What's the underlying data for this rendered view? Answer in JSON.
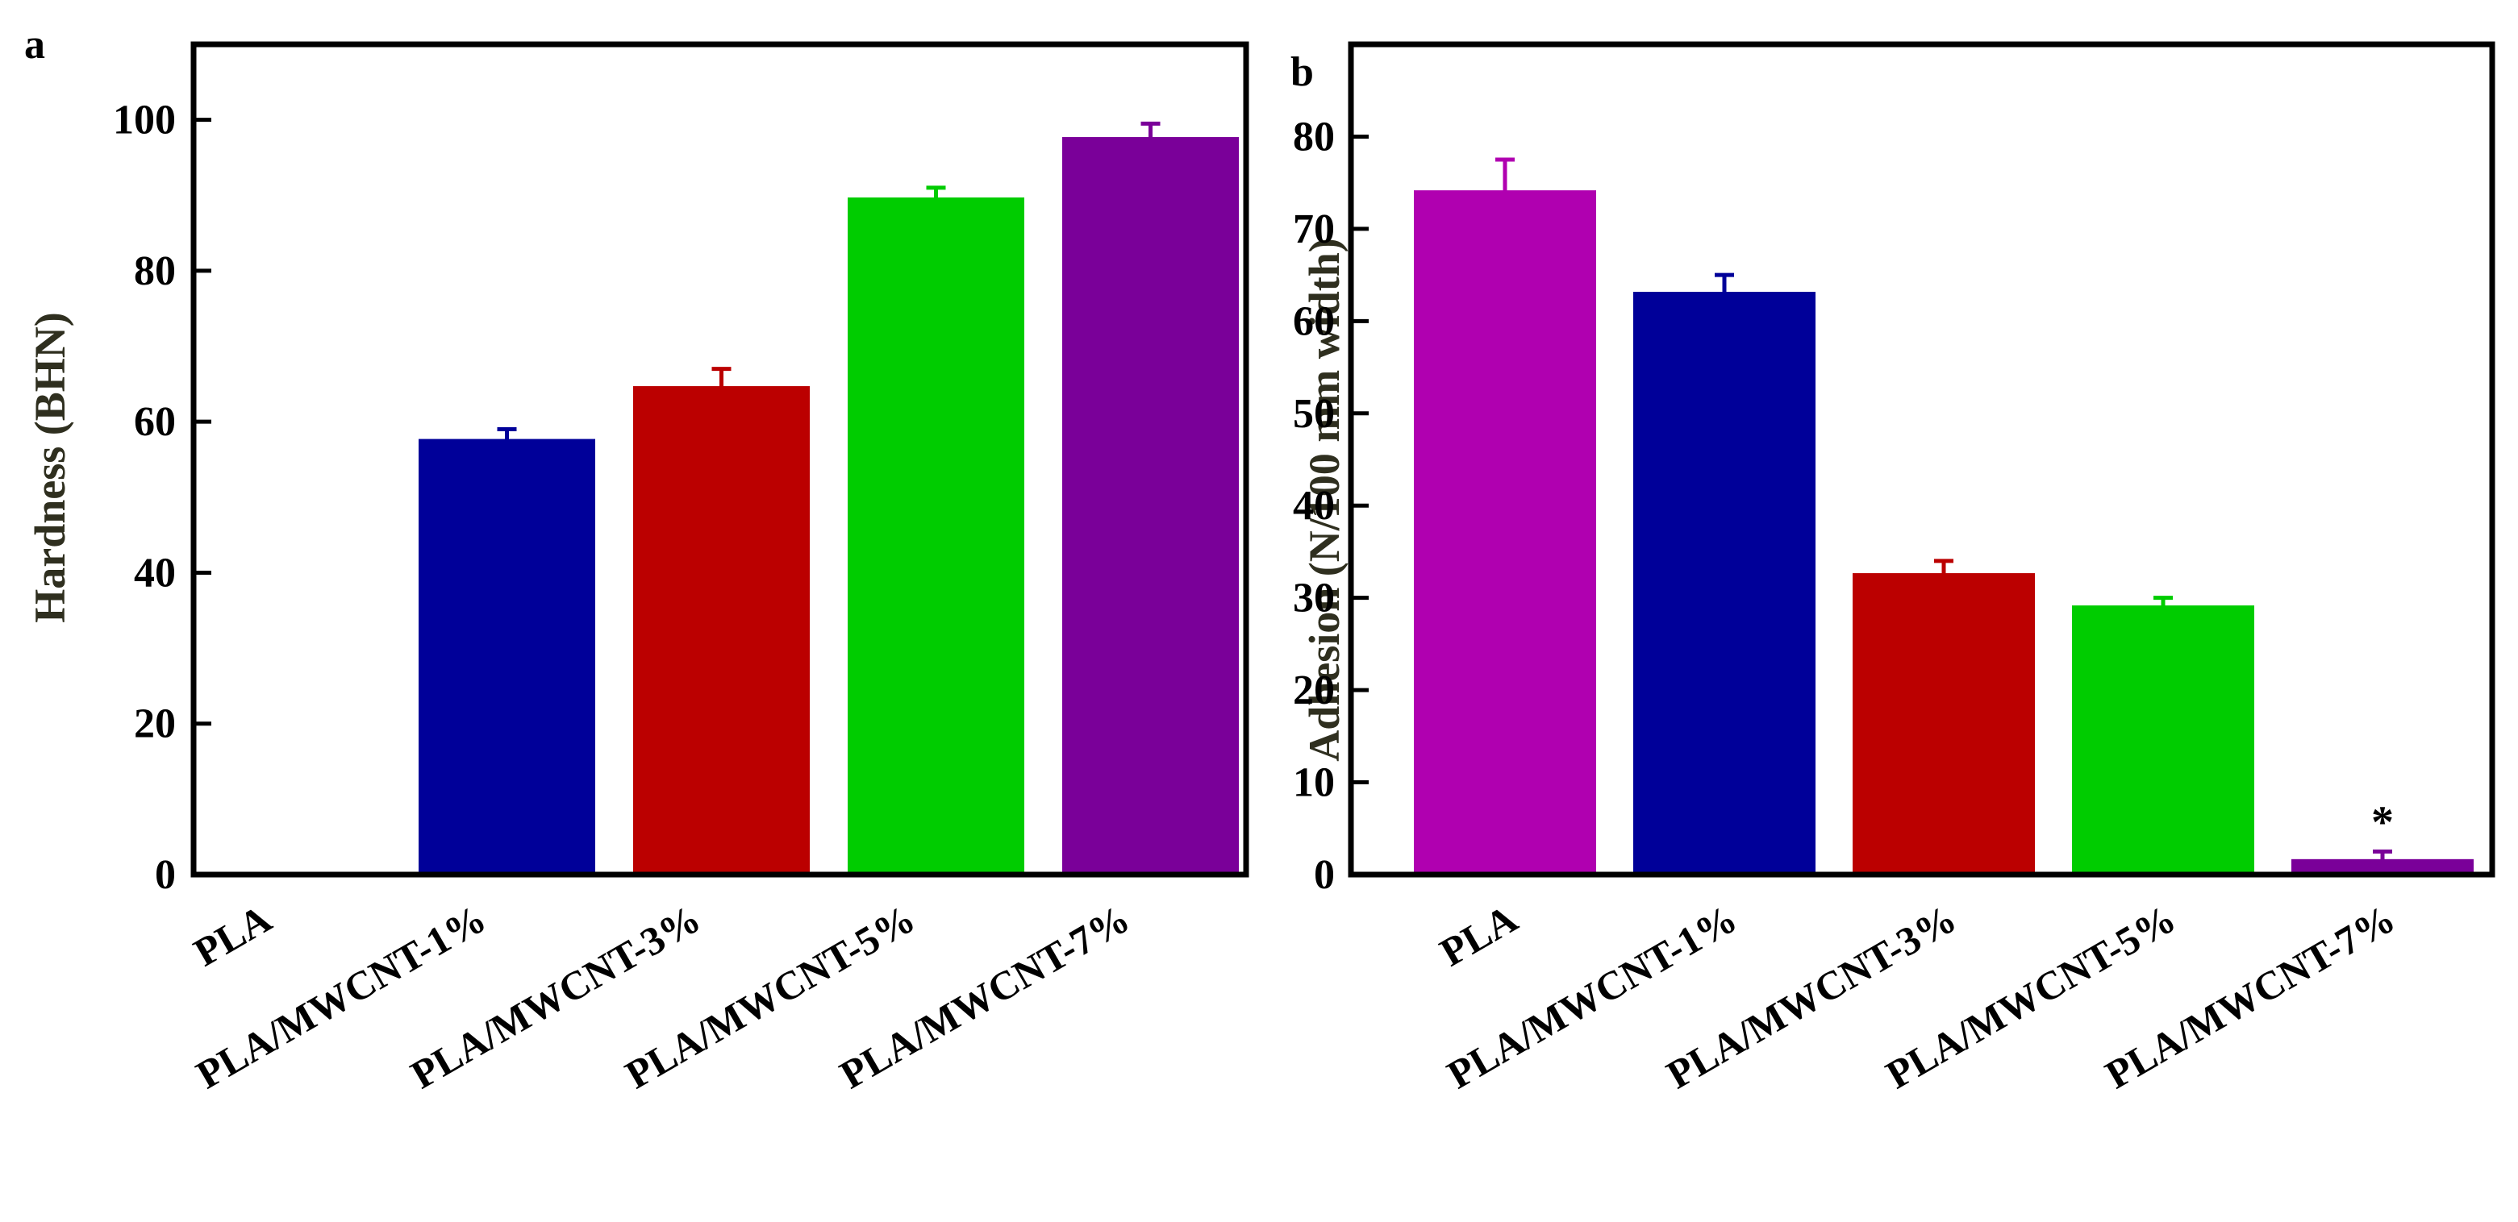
{
  "chart_data": [
    {
      "panel": "a",
      "type": "bar",
      "categories": [
        "PLA",
        "PLA/MWCNT-1%",
        "PLA/MWCNT-3%",
        "PLA/MWCNT-5%",
        "PLA/MWCNT-7%"
      ],
      "values": [
        0,
        57.5,
        64.5,
        89.5,
        97.5
      ],
      "errors": [
        0,
        1.5,
        2.5,
        1.5,
        2.0
      ],
      "colors": [
        "#ffffff",
        "#000099",
        "#bb0000",
        "#00cc00",
        "#7a0099"
      ],
      "ylabel": "Hardness (BHN)",
      "ylim": [
        0,
        110
      ],
      "yticks": [
        0,
        20,
        40,
        60,
        80,
        100
      ],
      "ytick_labels": [
        "0",
        "20",
        "40",
        "60",
        "80",
        "100"
      ]
    },
    {
      "panel": "b",
      "type": "bar",
      "categories": [
        "PLA",
        "PLA/MWCNT-1%",
        "PLA/MWCNT-3%",
        "PLA/MWCNT-5%",
        "PLA/MWCNT-7%"
      ],
      "values": [
        74,
        63,
        32.5,
        29,
        1.5
      ],
      "errors": [
        3.5,
        2.0,
        1.5,
        1.0,
        1.0
      ],
      "colors": [
        "#b000b0",
        "#000099",
        "#bb0000",
        "#00cc00",
        "#7a0099"
      ],
      "annotations": [
        "",
        "",
        "",
        "",
        "*"
      ],
      "ylabel": "Adhesion (N/100 mm width)",
      "ylim": [
        0,
        90
      ],
      "yticks": [
        0,
        10,
        20,
        30,
        40,
        50,
        60,
        70,
        80
      ],
      "ytick_labels": [
        "0",
        "10",
        "20",
        "30",
        "40",
        "50",
        "60",
        "70",
        "80"
      ]
    }
  ]
}
